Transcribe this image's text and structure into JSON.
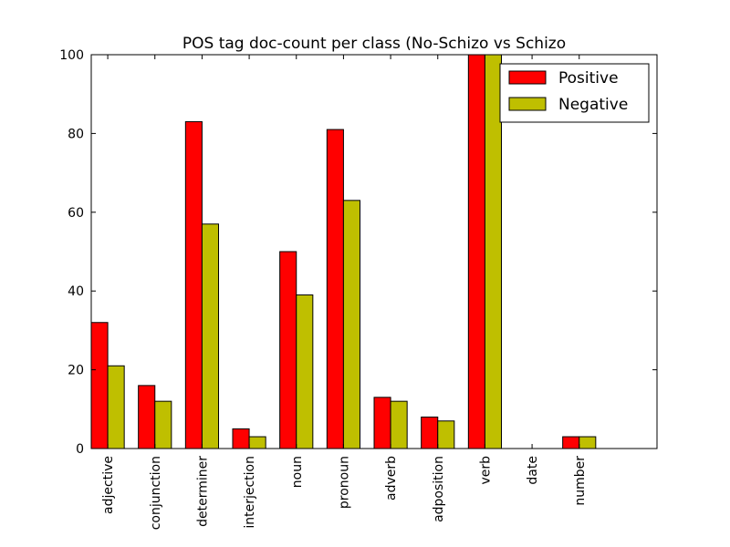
{
  "chart_data": {
    "type": "bar",
    "title": "POS tag doc-count per class (No-Schizo vs Schizo",
    "xlabel": "",
    "ylabel": "",
    "categories": [
      "adjective",
      "conjunction",
      "determiner",
      "interjection",
      "noun",
      "pronoun",
      "adverb",
      "adposition",
      "verb",
      "date",
      "number"
    ],
    "series": [
      {
        "name": "Positive",
        "color": "#ff0000",
        "values": [
          32,
          16,
          83,
          5,
          50,
          81,
          13,
          8,
          100,
          0,
          3
        ]
      },
      {
        "name": "Negative",
        "color": "#bfbf00",
        "values": [
          21,
          12,
          57,
          3,
          39,
          63,
          12,
          7,
          100,
          0,
          3
        ]
      }
    ],
    "ylim": [
      0,
      100
    ],
    "yticks": [
      0,
      20,
      40,
      60,
      80,
      100
    ],
    "xlim": [
      0,
      12
    ],
    "grid": false,
    "legend": "top-right"
  }
}
